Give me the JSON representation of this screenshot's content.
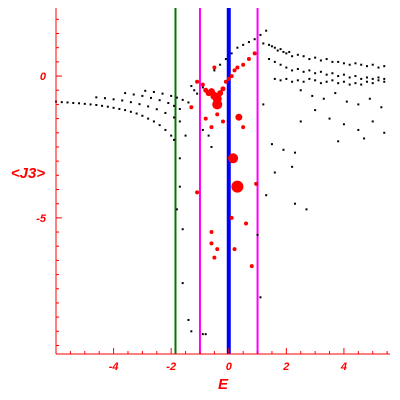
{
  "chart_data": {
    "type": "scatter",
    "title": "",
    "xlabel": "E",
    "ylabel": "<J3>",
    "xlim": [
      -6,
      5.6
    ],
    "ylim": [
      -9.8,
      2.4
    ],
    "xticks": [
      -4,
      -2,
      0,
      2,
      4
    ],
    "xtick_labels": [
      "-4",
      "-2",
      "0",
      "2",
      "4"
    ],
    "yticks": [
      0,
      -5
    ],
    "ytick_labels": [
      "0",
      "-5"
    ],
    "grid": false,
    "colors": {
      "axis": "#ff0000",
      "labels": "#ff0000",
      "points_black": "#000000",
      "points_red": "#ff0000",
      "line_green": "#007700",
      "line_magenta": "#ff00ff",
      "line_blue": "#0000ff"
    },
    "vertical_lines": [
      {
        "x": -1.85,
        "color": "#007700"
      },
      {
        "x": -1.0,
        "color": "#ff00ff"
      },
      {
        "x": 1.0,
        "color": "#ff00ff"
      },
      {
        "x": 0.0,
        "color": "#0000ff"
      }
    ],
    "series": [
      {
        "color": "#000000",
        "marker": "dot",
        "points": [
          [
            -6.0,
            -0.9
          ],
          [
            -5.8,
            -0.92
          ],
          [
            -5.6,
            -0.93
          ],
          [
            -5.4,
            -0.95
          ],
          [
            -5.2,
            -0.96
          ],
          [
            -5.0,
            -0.98
          ],
          [
            -4.8,
            -1.0
          ],
          [
            -4.6,
            -1.02
          ],
          [
            -4.4,
            -1.05
          ],
          [
            -4.2,
            -1.08
          ],
          [
            -4.0,
            -1.12
          ],
          [
            -3.8,
            -1.16
          ],
          [
            -3.6,
            -1.2
          ],
          [
            -3.4,
            -1.26
          ],
          [
            -3.2,
            -1.32
          ],
          [
            -3.0,
            -1.4
          ],
          [
            -2.8,
            -1.5
          ],
          [
            -2.6,
            -1.6
          ],
          [
            -2.4,
            -1.73
          ],
          [
            -2.2,
            -1.9
          ],
          [
            -2.0,
            -2.1
          ],
          [
            -1.9,
            -2.25
          ],
          [
            -4.6,
            -0.75
          ],
          [
            -4.3,
            -0.78
          ],
          [
            -4.0,
            -0.82
          ],
          [
            -3.7,
            -0.86
          ],
          [
            -3.4,
            -0.92
          ],
          [
            -3.1,
            -0.99
          ],
          [
            -2.8,
            -1.07
          ],
          [
            -2.5,
            -1.17
          ],
          [
            -2.2,
            -1.3
          ],
          [
            -1.9,
            -1.46
          ],
          [
            -1.7,
            -1.6
          ],
          [
            -3.6,
            -0.6
          ],
          [
            -3.3,
            -0.65
          ],
          [
            -3.0,
            -0.7
          ],
          [
            -2.7,
            -0.77
          ],
          [
            -2.4,
            -0.85
          ],
          [
            -2.1,
            -0.95
          ],
          [
            -1.9,
            -1.05
          ],
          [
            -1.7,
            -1.16
          ],
          [
            -2.9,
            -0.52
          ],
          [
            -2.6,
            -0.56
          ],
          [
            -2.3,
            -0.62
          ],
          [
            -2.0,
            -0.7
          ],
          [
            -1.8,
            -0.76
          ],
          [
            -1.6,
            -0.84
          ],
          [
            -1.4,
            -0.93
          ],
          [
            -1.3,
            -0.35
          ],
          [
            -1.2,
            -0.5
          ],
          [
            -1.1,
            -0.62
          ],
          [
            -0.9,
            -0.4
          ],
          [
            -0.5,
            0.2
          ],
          [
            -0.3,
            0.4
          ],
          [
            -0.1,
            0.6
          ],
          [
            0.1,
            0.8
          ],
          [
            0.3,
            1.0
          ],
          [
            0.5,
            1.1
          ],
          [
            0.7,
            1.2
          ],
          [
            0.9,
            1.3
          ],
          [
            1.1,
            1.45
          ],
          [
            1.2,
            1.15
          ],
          [
            1.3,
            1.6
          ],
          [
            1.4,
            1.1
          ],
          [
            1.5,
            1.05
          ],
          [
            1.6,
            1.0
          ],
          [
            1.7,
            0.9
          ],
          [
            1.8,
            0.95
          ],
          [
            1.9,
            0.85
          ],
          [
            2.0,
            0.8
          ],
          [
            2.1,
            0.85
          ],
          [
            2.2,
            0.7
          ],
          [
            2.4,
            0.75
          ],
          [
            2.6,
            0.7
          ],
          [
            2.8,
            0.6
          ],
          [
            3.0,
            0.65
          ],
          [
            3.2,
            0.55
          ],
          [
            3.4,
            0.6
          ],
          [
            3.6,
            0.5
          ],
          [
            3.8,
            0.5
          ],
          [
            4.0,
            0.45
          ],
          [
            4.2,
            0.4
          ],
          [
            4.4,
            0.45
          ],
          [
            4.6,
            0.4
          ],
          [
            4.8,
            0.35
          ],
          [
            5.0,
            0.4
          ],
          [
            5.2,
            0.3
          ],
          [
            5.4,
            0.35
          ],
          [
            1.4,
            0.6
          ],
          [
            1.6,
            0.5
          ],
          [
            1.8,
            0.4
          ],
          [
            2.0,
            0.3
          ],
          [
            2.2,
            0.2
          ],
          [
            2.4,
            0.25
          ],
          [
            2.6,
            0.15
          ],
          [
            2.8,
            0.2
          ],
          [
            3.0,
            0.1
          ],
          [
            3.2,
            0.15
          ],
          [
            3.4,
            0.05
          ],
          [
            3.6,
            0.1
          ],
          [
            3.8,
            0.0
          ],
          [
            4.0,
            0.05
          ],
          [
            4.2,
            -0.05
          ],
          [
            4.4,
            0.0
          ],
          [
            4.6,
            -0.1
          ],
          [
            4.8,
            -0.05
          ],
          [
            5.0,
            -0.1
          ],
          [
            5.2,
            -0.05
          ],
          [
            5.4,
            -0.1
          ],
          [
            1.6,
            -0.1
          ],
          [
            1.8,
            -0.15
          ],
          [
            2.0,
            -0.1
          ],
          [
            2.2,
            -0.2
          ],
          [
            2.4,
            -0.15
          ],
          [
            2.6,
            -0.2
          ],
          [
            2.8,
            -0.1
          ],
          [
            3.0,
            -0.15
          ],
          [
            3.2,
            -0.25
          ],
          [
            3.4,
            -0.2
          ],
          [
            3.6,
            -0.15
          ],
          [
            3.8,
            -0.25
          ],
          [
            4.0,
            -0.2
          ],
          [
            4.2,
            -0.3
          ],
          [
            4.4,
            -0.25
          ],
          [
            4.6,
            -0.3
          ],
          [
            4.8,
            -0.2
          ],
          [
            5.0,
            -0.25
          ],
          [
            5.2,
            -0.15
          ],
          [
            5.4,
            -0.2
          ],
          [
            2.5,
            -0.5
          ],
          [
            2.9,
            -0.7
          ],
          [
            3.3,
            -0.8
          ],
          [
            3.7,
            -0.6
          ],
          [
            4.1,
            -0.9
          ],
          [
            4.5,
            -1.0
          ],
          [
            4.9,
            -0.8
          ],
          [
            5.3,
            -1.1
          ],
          [
            3.0,
            -1.2
          ],
          [
            3.5,
            -1.5
          ],
          [
            4.0,
            -1.7
          ],
          [
            4.5,
            -1.9
          ],
          [
            5.0,
            -1.6
          ],
          [
            5.4,
            -2.0
          ],
          [
            2.5,
            -1.6
          ],
          [
            3.8,
            -2.3
          ],
          [
            4.7,
            -2.2
          ],
          [
            1.2,
            -1.0
          ],
          [
            1.5,
            -2.4
          ],
          [
            1.9,
            -2.6
          ],
          [
            2.3,
            -2.7
          ],
          [
            2.2,
            -3.2
          ],
          [
            2.7,
            -4.7
          ],
          [
            2.3,
            -4.5
          ],
          [
            1.6,
            -3.4
          ],
          [
            1.3,
            -4.2
          ],
          [
            1.0,
            -5.6
          ],
          [
            1.1,
            -7.8
          ],
          [
            -1.5,
            -2.1
          ],
          [
            -1.7,
            -3.9
          ],
          [
            -1.8,
            -4.7
          ],
          [
            -1.6,
            -7.3
          ],
          [
            -1.4,
            -8.6
          ],
          [
            -1.3,
            -9.0
          ],
          [
            -0.9,
            -9.1
          ],
          [
            -0.8,
            -9.1
          ],
          [
            -1.6,
            -5.4
          ],
          [
            -1.7,
            -2.9
          ],
          [
            -0.9,
            -1.9
          ],
          [
            -0.7,
            -2.1
          ],
          [
            -0.6,
            -2.5
          ]
        ]
      },
      {
        "color": "#ff0000",
        "marker": "circle",
        "points": [
          [
            -0.9,
            -0.3,
            2.0
          ],
          [
            -0.8,
            -0.5,
            2.5
          ],
          [
            -0.7,
            -0.6,
            3.0
          ],
          [
            -0.6,
            -0.55,
            3.5
          ],
          [
            -0.5,
            -0.7,
            4.0
          ],
          [
            -0.4,
            -0.8,
            4.5
          ],
          [
            -0.3,
            -0.6,
            3.0
          ],
          [
            -0.2,
            -0.45,
            2.5
          ],
          [
            -0.1,
            -0.2,
            2.0
          ],
          [
            0.0,
            -0.1,
            2.0
          ],
          [
            0.1,
            0.0,
            2.0
          ],
          [
            0.2,
            0.2,
            2.0
          ],
          [
            0.3,
            0.3,
            2.0
          ],
          [
            0.5,
            0.4,
            2.0
          ],
          [
            0.7,
            0.6,
            2.0
          ],
          [
            0.9,
            0.8,
            2.0
          ],
          [
            -0.4,
            -1.0,
            5.0
          ],
          [
            -0.5,
            0.3,
            2.0
          ],
          [
            -1.1,
            -0.2,
            2.0
          ],
          [
            -1.3,
            -1.1,
            2.0
          ],
          [
            -0.8,
            -1.5,
            2.0
          ],
          [
            -0.6,
            -1.8,
            2.0
          ],
          [
            -0.4,
            -1.35,
            2.0
          ],
          [
            -0.2,
            -1.6,
            2.0
          ],
          [
            0.35,
            -1.45,
            3.5
          ],
          [
            0.5,
            -1.8,
            2.0
          ],
          [
            0.15,
            -2.9,
            5.0
          ],
          [
            0.3,
            -3.9,
            6.0
          ],
          [
            0.95,
            -3.8,
            2.0
          ],
          [
            0.6,
            -5.2,
            2.0
          ],
          [
            0.8,
            -6.7,
            2.0
          ],
          [
            -0.5,
            -6.4,
            2.0
          ],
          [
            -0.6,
            -5.5,
            2.0
          ],
          [
            -0.6,
            -5.9,
            2.0
          ],
          [
            -0.4,
            -6.1,
            2.0
          ],
          [
            0.2,
            -6.1,
            2.0
          ],
          [
            0.1,
            -5.0,
            2.0
          ],
          [
            -1.1,
            -4.1,
            2.0
          ]
        ]
      }
    ]
  }
}
